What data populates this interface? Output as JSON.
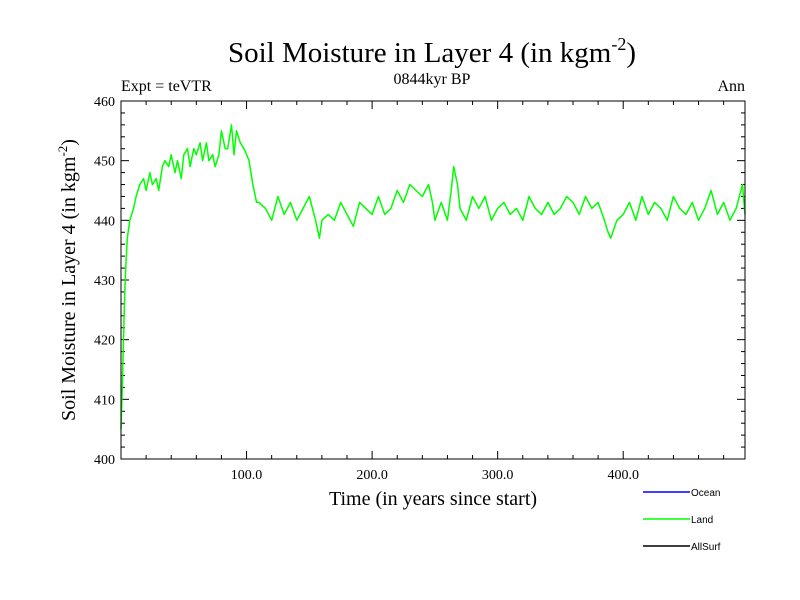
{
  "chart_data": {
    "type": "line",
    "title_main": "Soil Moisture in Layer 4 (in kgm",
    "title_sup": "-2",
    "title_close": ")",
    "subtitle_left": "Expt = teVTR",
    "subtitle_center": "0844kyr BP",
    "subtitle_right": "Ann",
    "xlabel": "Time (in years since start)",
    "ylabel_main": "Soil Moisture in Layer 4 (in kgm",
    "ylabel_sup": "-2",
    "ylabel_close": ")",
    "xlim": [
      0,
      497
    ],
    "ylim": [
      400,
      460
    ],
    "x_ticks": [
      100,
      200,
      300,
      400
    ],
    "x_tick_labels": [
      "100.0",
      "200.0",
      "300.0",
      "400.0"
    ],
    "y_ticks": [
      400,
      410,
      420,
      430,
      440,
      450,
      460
    ],
    "y_tick_labels": [
      "400",
      "410",
      "420",
      "430",
      "440",
      "450",
      "460"
    ],
    "legend": [
      {
        "name": "Ocean",
        "color": "#0000ff"
      },
      {
        "name": "Land",
        "color": "#00ff00"
      },
      {
        "name": "AllSurf",
        "color": "#000000"
      }
    ],
    "series": [
      {
        "name": "Land",
        "color": "#00ff00",
        "x": [
          0,
          1,
          2,
          3,
          4,
          5,
          7,
          10,
          12,
          15,
          18,
          20,
          23,
          25,
          28,
          30,
          33,
          35,
          38,
          40,
          43,
          45,
          48,
          50,
          53,
          55,
          58,
          60,
          63,
          65,
          68,
          70,
          73,
          75,
          78,
          80,
          83,
          85,
          88,
          90,
          92,
          95,
          98,
          100,
          102,
          105,
          108,
          110,
          115,
          120,
          125,
          130,
          135,
          140,
          145,
          150,
          155,
          158,
          160,
          165,
          170,
          175,
          180,
          185,
          190,
          195,
          200,
          205,
          210,
          215,
          220,
          225,
          230,
          235,
          240,
          245,
          248,
          250,
          255,
          260,
          263,
          265,
          268,
          270,
          275,
          280,
          285,
          290,
          295,
          300,
          305,
          310,
          315,
          320,
          325,
          330,
          335,
          340,
          345,
          350,
          355,
          360,
          365,
          370,
          375,
          380,
          385,
          388,
          390,
          395,
          400,
          405,
          410,
          415,
          420,
          425,
          430,
          435,
          440,
          445,
          450,
          455,
          460,
          465,
          470,
          475,
          480,
          485,
          490,
          495,
          497
        ],
        "values": [
          405,
          412,
          420,
          428,
          433,
          437,
          440,
          442,
          444,
          446,
          447,
          445,
          448,
          446,
          447,
          445,
          449,
          450,
          449,
          451,
          448,
          450,
          447,
          451,
          452,
          449,
          452,
          451,
          453,
          450,
          453,
          450,
          451,
          449,
          451,
          455,
          452,
          452,
          456,
          451,
          455,
          453,
          452,
          451,
          450,
          446,
          443,
          443,
          442,
          440,
          444,
          441,
          443,
          440,
          442,
          444,
          440,
          437,
          440,
          441,
          440,
          443,
          441,
          439,
          443,
          442,
          441,
          444,
          441,
          442,
          445,
          443,
          446,
          445,
          444,
          446,
          443,
          440,
          443,
          440,
          445,
          449,
          446,
          442,
          440,
          444,
          442,
          444,
          440,
          442,
          443,
          441,
          442,
          440,
          444,
          442,
          441,
          443,
          441,
          442,
          444,
          443,
          441,
          444,
          442,
          443,
          440,
          438,
          437,
          440,
          441,
          443,
          440,
          444,
          441,
          443,
          442,
          440,
          444,
          442,
          441,
          443,
          440,
          442,
          445,
          441,
          443,
          440,
          442,
          446,
          441
        ]
      }
    ]
  }
}
